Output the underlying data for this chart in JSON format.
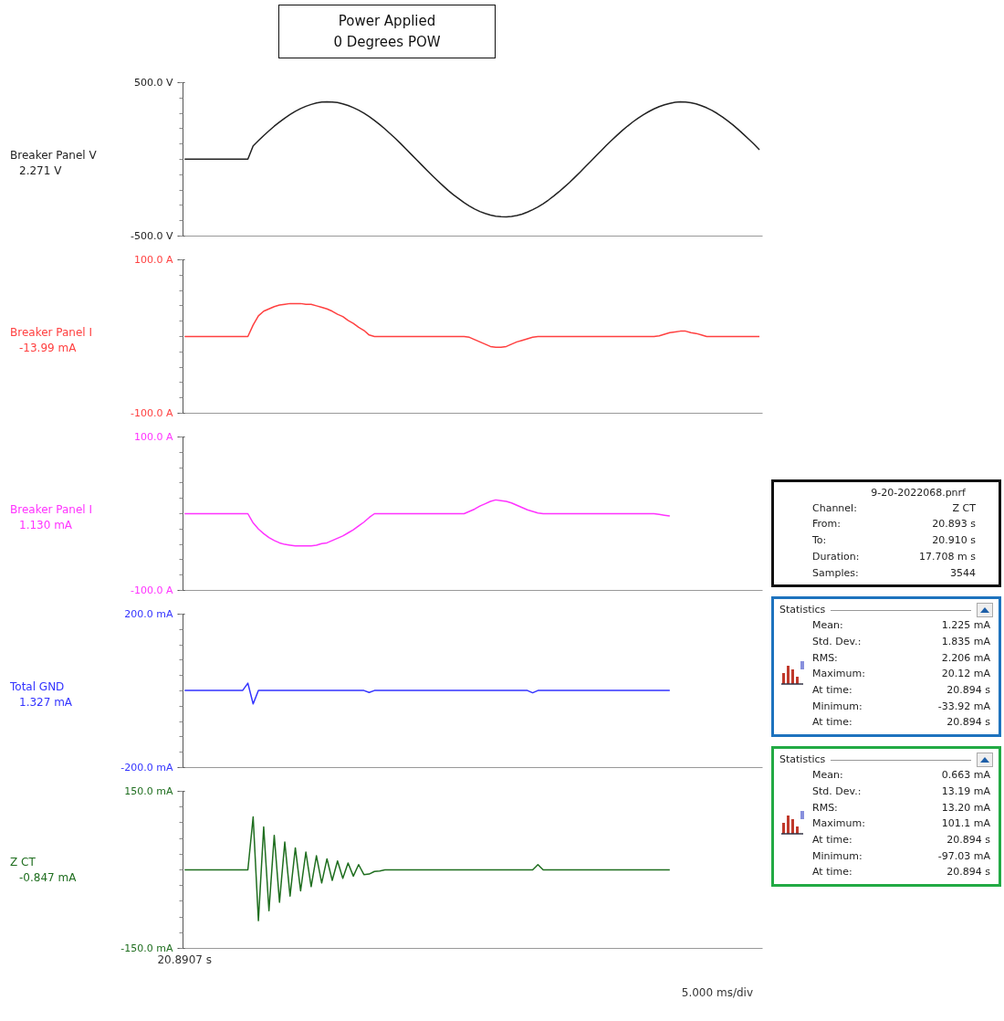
{
  "chart_data": [
    {
      "type": "line",
      "title": "Power Applied",
      "subtitle": "0 Degrees POW",
      "ylim": [
        -500,
        500
      ],
      "yticks": [
        {
          "value": 500,
          "label": "500.0 V"
        },
        {
          "value": -500,
          "label": "-500.0 V"
        }
      ],
      "tick_labels": "y",
      "annotations": [
        "2.271  V"
      ],
      "categories": [
        null,
        null,
        null,
        null,
        null,
        null,
        null,
        null,
        null,
        null,
        null,
        null,
        null,
        null,
        null,
        null,
        null,
        null,
        null,
        null,
        null,
        null,
        null,
        null,
        null,
        null,
        null,
        null,
        null,
        null,
        null,
        null,
        null,
        null,
        null,
        null,
        null,
        null,
        null,
        null,
        null,
        null,
        null,
        null,
        null,
        null,
        null,
        null,
        null,
        null,
        null,
        null,
        null,
        null,
        null,
        null,
        null,
        null,
        null,
        null,
        null,
        null,
        null,
        null,
        null,
        null,
        null,
        null,
        null,
        null,
        null,
        null,
        null,
        null,
        null,
        null,
        null,
        null,
        null,
        null,
        null,
        null,
        null,
        null,
        null,
        null,
        null,
        null,
        null,
        null,
        null,
        null,
        null,
        null,
        null,
        null,
        null,
        null,
        null,
        null,
        null,
        null,
        null,
        null,
        null,
        null,
        null,
        null,
        null,
        null
      ],
      "series": [
        {
          "name": "Breaker Panel V",
          "color": "#222222",
          "values": [
            2,
            2,
            2,
            2,
            2,
            2,
            2,
            2,
            2,
            2,
            2,
            2,
            2,
            88,
            122,
            155,
            186,
            216,
            243,
            269,
            292,
            313,
            331,
            346,
            358,
            367,
            373,
            375,
            374,
            370,
            362,
            351,
            337,
            321,
            301,
            279,
            254,
            227,
            198,
            167,
            135,
            102,
            67,
            32,
            -3,
            -38,
            -73,
            -107,
            -140,
            -172,
            -203,
            -231,
            -257,
            -282,
            -304,
            -324,
            -340,
            -353,
            -363,
            -371,
            -374,
            -375,
            -372,
            -366,
            -357,
            -344,
            -328,
            -310,
            -289,
            -265,
            -239,
            -211,
            -181,
            -150,
            -117,
            -83,
            -48,
            -13,
            22,
            57,
            92,
            125,
            157,
            188,
            217,
            244,
            269,
            291,
            311,
            329,
            344,
            356,
            365,
            372,
            375,
            374,
            369,
            362,
            350,
            336,
            319,
            299,
            276,
            251,
            224,
            194,
            163,
            131,
            98,
            63
          ]
        }
      ]
    },
    {
      "type": "line",
      "ylim": [
        -100,
        100
      ],
      "yticks": [
        {
          "value": 100,
          "label": "100.0 A"
        },
        {
          "value": -100,
          "label": "-100.0 A"
        }
      ],
      "tick_labels": "y",
      "annotations": [
        "-13.99 mA"
      ],
      "categories": [
        null,
        null,
        null,
        null,
        null,
        null,
        null,
        null,
        null,
        null,
        null,
        null,
        null,
        null,
        null,
        null,
        null,
        null,
        null,
        null,
        null,
        null,
        null,
        null,
        null,
        null,
        null,
        null,
        null,
        null,
        null,
        null,
        null,
        null,
        null,
        null,
        null,
        null,
        null,
        null,
        null,
        null,
        null,
        null,
        null,
        null,
        null,
        null,
        null,
        null,
        null,
        null,
        null,
        null,
        null,
        null,
        null,
        null,
        null,
        null,
        null,
        null,
        null,
        null,
        null,
        null,
        null,
        null,
        null,
        null,
        null,
        null,
        null,
        null,
        null,
        null,
        null,
        null,
        null,
        null,
        null,
        null,
        null,
        null,
        null,
        null,
        null,
        null,
        null,
        null,
        null,
        null,
        null,
        null,
        null,
        null,
        null,
        null,
        null,
        null,
        null,
        null,
        null,
        null,
        null,
        null,
        null,
        null,
        null,
        null
      ],
      "series": [
        {
          "name": "Breaker Panel I",
          "color": "#ff4040",
          "values": [
            0,
            0,
            0,
            0,
            0,
            0,
            0,
            0,
            0,
            0,
            0,
            0,
            0,
            15,
            27,
            33,
            36,
            39,
            41,
            42,
            43,
            43,
            43,
            42,
            42,
            40,
            38,
            36,
            33,
            29,
            26,
            21,
            17,
            12,
            8,
            2,
            0,
            0,
            0,
            0,
            0,
            0,
            0,
            0,
            0,
            0,
            0,
            0,
            0,
            0,
            0,
            0,
            0,
            0,
            -1,
            -4,
            -7,
            -10,
            -13,
            -14,
            -14,
            -13,
            -10,
            -7,
            -5,
            -3,
            -1,
            0,
            0,
            0,
            0,
            0,
            0,
            0,
            0,
            0,
            0,
            0,
            0,
            0,
            0,
            0,
            0,
            0,
            0,
            0,
            0,
            0,
            0,
            0,
            1,
            3,
            5,
            6,
            7,
            7,
            5,
            4,
            2,
            0,
            0,
            0,
            0,
            0,
            0,
            0,
            0,
            0,
            0,
            0
          ]
        }
      ]
    },
    {
      "type": "line",
      "ylim": [
        -100,
        100
      ],
      "yticks": [
        {
          "value": 100,
          "label": "100.0 A"
        },
        {
          "value": -100,
          "label": "-100.0 A"
        }
      ],
      "tick_labels": "y",
      "annotations": [
        "1.130 mA"
      ],
      "categories": [
        null,
        null,
        null,
        null,
        null,
        null,
        null,
        null,
        null,
        null,
        null,
        null,
        null,
        null,
        null,
        null,
        null,
        null,
        null,
        null,
        null,
        null,
        null,
        null,
        null,
        null,
        null,
        null,
        null,
        null,
        null,
        null,
        null,
        null,
        null,
        null,
        null,
        null,
        null,
        null,
        null,
        null,
        null,
        null,
        null,
        null,
        null,
        null,
        null,
        null,
        null,
        null,
        null,
        null,
        null,
        null,
        null,
        null,
        null,
        null,
        null,
        null,
        null,
        null,
        null,
        null,
        null,
        null,
        null,
        null,
        null,
        null,
        null,
        null,
        null,
        null,
        null,
        null,
        null,
        null,
        null,
        null,
        null,
        null,
        null,
        null,
        null,
        null,
        null,
        null,
        null,
        null,
        null,
        null,
        null,
        null,
        null,
        null,
        null,
        null,
        null,
        null,
        null,
        null,
        null,
        null,
        null,
        null,
        null,
        null
      ],
      "series": [
        {
          "name": "Breaker Panel I",
          "color": "#ff33ff",
          "values": [
            0,
            0,
            0,
            0,
            0,
            0,
            0,
            0,
            0,
            0,
            0,
            0,
            0,
            -12,
            -20,
            -26,
            -31,
            -35,
            -38,
            -40,
            -41,
            -42,
            -42,
            -42,
            -42,
            -41,
            -39,
            -38,
            -35,
            -32,
            -29,
            -25,
            -21,
            -16,
            -11,
            -5,
            0,
            0,
            0,
            0,
            0,
            0,
            0,
            0,
            0,
            0,
            0,
            0,
            0,
            0,
            0,
            0,
            0,
            0,
            3,
            6,
            10,
            13,
            16,
            18,
            17,
            16,
            14,
            11,
            8,
            5,
            3,
            1,
            0,
            0,
            0,
            0,
            0,
            0,
            0,
            0,
            0,
            0,
            0,
            0,
            0,
            0,
            0,
            0,
            0,
            0,
            0,
            0,
            0,
            0,
            -1,
            -2,
            -3,
            null,
            null,
            null,
            null,
            null,
            null,
            null,
            null,
            null,
            null,
            null,
            null,
            null,
            null,
            null,
            null,
            null
          ]
        }
      ]
    },
    {
      "type": "line",
      "ylim": [
        -200,
        200
      ],
      "yticks": [
        {
          "value": 200,
          "label": "200.0 mA"
        },
        {
          "value": -200,
          "label": "-200.0 mA"
        }
      ],
      "tick_labels": "y",
      "annotations": [
        "1.327 mA"
      ],
      "categories": [
        null,
        null,
        null,
        null,
        null,
        null,
        null,
        null,
        null,
        null,
        null,
        null,
        null,
        null,
        null,
        null,
        null,
        null,
        null,
        null,
        null,
        null,
        null,
        null,
        null,
        null,
        null,
        null,
        null,
        null,
        null,
        null,
        null,
        null,
        null,
        null,
        null,
        null,
        null,
        null,
        null,
        null,
        null,
        null,
        null,
        null,
        null,
        null,
        null,
        null,
        null,
        null,
        null,
        null,
        null,
        null,
        null,
        null,
        null,
        null,
        null,
        null,
        null,
        null,
        null,
        null,
        null,
        null,
        null,
        null,
        null,
        null,
        null,
        null,
        null,
        null,
        null,
        null,
        null,
        null,
        null,
        null,
        null,
        null,
        null,
        null,
        null,
        null,
        null,
        null,
        null,
        null,
        null,
        null,
        null,
        null,
        null,
        null,
        null,
        null,
        null,
        null,
        null,
        null,
        null,
        null,
        null,
        null,
        null,
        null
      ],
      "series": [
        {
          "name": "Total GND",
          "color": "#3333ff",
          "values": [
            1,
            1,
            1,
            1,
            1,
            1,
            1,
            1,
            1,
            1,
            1,
            1,
            20,
            -34,
            1,
            1,
            1,
            1,
            1,
            1,
            1,
            1,
            1,
            1,
            1,
            1,
            1,
            1,
            1,
            1,
            1,
            1,
            1,
            1,
            1,
            -4,
            1,
            1,
            1,
            1,
            1,
            1,
            1,
            1,
            1,
            1,
            1,
            1,
            1,
            1,
            1,
            1,
            1,
            1,
            1,
            1,
            1,
            1,
            1,
            1,
            1,
            1,
            1,
            1,
            1,
            1,
            -5,
            1,
            1,
            1,
            1,
            1,
            1,
            1,
            1,
            1,
            1,
            1,
            1,
            1,
            1,
            1,
            1,
            1,
            1,
            1,
            1,
            1,
            1,
            1,
            1,
            1,
            1,
            null,
            null,
            null,
            null,
            null,
            null,
            null,
            null,
            null,
            null,
            null,
            null,
            null,
            null,
            null,
            null,
            null
          ]
        }
      ]
    },
    {
      "type": "line",
      "ylim": [
        -150,
        150
      ],
      "yticks": [
        {
          "value": 150,
          "label": "150.0 mA"
        },
        {
          "value": -150,
          "label": "-150.0 mA"
        }
      ],
      "annotations": [
        "-0.847 mA",
        "5.000 ms/div"
      ],
      "categories": [
        "20.8907 s",
        null,
        null,
        null,
        null,
        null,
        null,
        null,
        null,
        null,
        null,
        null,
        null,
        null,
        null,
        null,
        null,
        null,
        null,
        null,
        null,
        null,
        null,
        null,
        null,
        null,
        null,
        null,
        null,
        null,
        null,
        null,
        null,
        null,
        null,
        null,
        null,
        null,
        null,
        null,
        null,
        null,
        null,
        null,
        null,
        null,
        null,
        null,
        null,
        null,
        null,
        null,
        null,
        null,
        null,
        null,
        null,
        null,
        null,
        null,
        null,
        null,
        null,
        null,
        null,
        null,
        null,
        null,
        null,
        null,
        null,
        null,
        null,
        null,
        null,
        null,
        null,
        null,
        null,
        null,
        null,
        null,
        null,
        null,
        null,
        null,
        null,
        null,
        null,
        null,
        null,
        null,
        null,
        null,
        null,
        null,
        null,
        null,
        null,
        null,
        null,
        null,
        null,
        null,
        null,
        null,
        null,
        null,
        null,
        null
      ],
      "series": [
        {
          "name": "Z CT",
          "color": "#1f6e1f",
          "values": [
            0,
            0,
            0,
            0,
            0,
            0,
            0,
            0,
            0,
            0,
            0,
            0,
            0,
            101,
            -97,
            82,
            -78,
            66,
            -62,
            53,
            -50,
            42,
            -40,
            34,
            -32,
            27,
            -25,
            21,
            -20,
            17,
            -16,
            13,
            -12,
            10,
            -9,
            -8,
            -3,
            -2,
            0,
            0,
            0,
            0,
            0,
            0,
            0,
            0,
            0,
            0,
            0,
            0,
            0,
            0,
            0,
            0,
            0,
            0,
            0,
            0,
            0,
            0,
            0,
            0,
            0,
            0,
            0,
            0,
            0,
            10,
            0,
            0,
            0,
            0,
            0,
            0,
            0,
            0,
            0,
            0,
            0,
            0,
            0,
            0,
            0,
            0,
            0,
            0,
            0,
            0,
            0,
            0,
            0,
            0,
            0,
            null,
            null,
            null,
            null,
            null,
            null,
            null,
            null,
            null,
            null,
            null,
            null,
            null,
            null,
            null,
            null,
            null
          ]
        }
      ]
    },
    {
      "type": "other",
      "title": "9-20-2022068.pnrf",
      "annotations": [
        "Channel:",
        "Z CT",
        "From:",
        "20.893 s",
        "To:",
        "20.910 s",
        "Duration:",
        "17.708 m s",
        "Samples:",
        "3544"
      ]
    },
    {
      "type": "other",
      "title": "Statistics",
      "annotations": [
        "Mean:",
        "1.225 mA",
        "Std. Dev.:",
        "1.835 mA",
        "RMS:",
        "2.206 mA",
        "Maximum:",
        "20.12 mA",
        "At time:",
        "20.894 s",
        "Minimum:",
        "-33.92 mA",
        "At time:",
        "20.894 s"
      ]
    },
    {
      "type": "other",
      "title": "Statistics",
      "annotations": [
        "Mean:",
        "0.663 mA",
        "Std. Dev.:",
        "13.19 mA",
        "RMS:",
        "13.20 mA",
        "Maximum:",
        "101.1 mA",
        "At time:",
        "20.894 s",
        "Minimum:",
        "-97.03 mA",
        "At time:",
        "20.894 s"
      ]
    }
  ]
}
